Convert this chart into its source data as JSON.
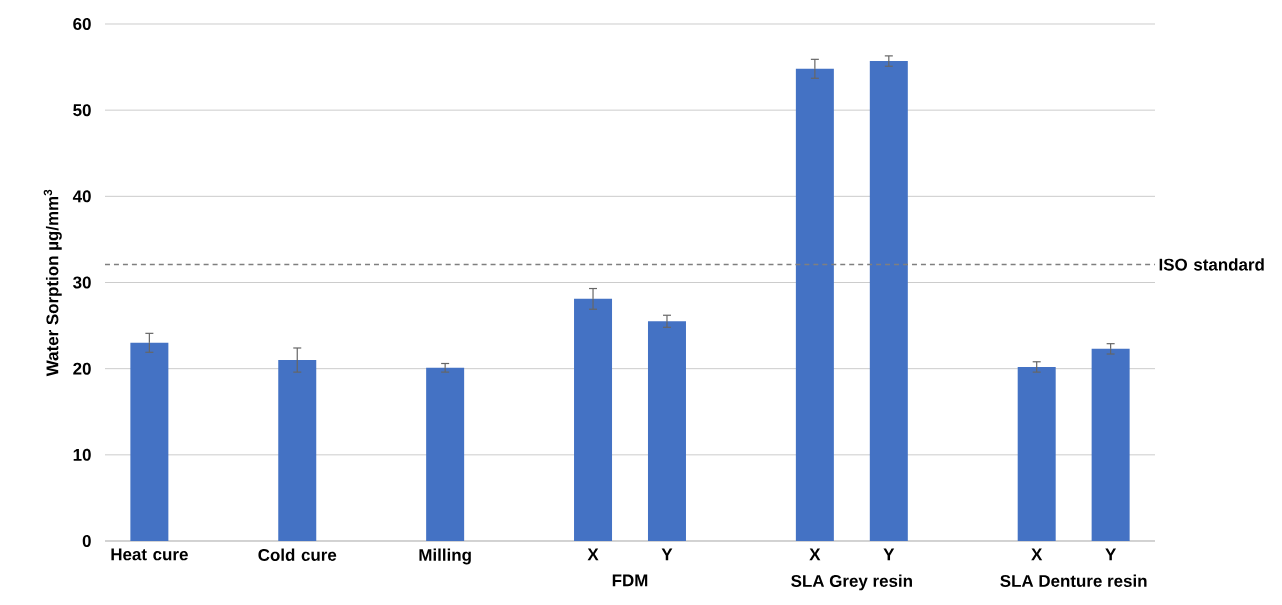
{
  "chart_data": {
    "type": "bar",
    "ylabel": "Water Sorption  µg/mm$^{3}$",
    "categories": [
      "Heat cure",
      null,
      "Cold cure",
      null,
      "Milling",
      null,
      "X",
      "Y",
      null,
      "X",
      "Y",
      null,
      "X",
      "Y"
    ],
    "values": [
      23,
      null,
      21,
      null,
      20.1,
      null,
      28.1,
      25.5,
      null,
      54.8,
      55.7,
      null,
      20.2,
      22.3
    ],
    "errors": [
      1.1,
      null,
      1.4,
      null,
      0.5,
      null,
      1.2,
      0.7,
      null,
      1.1,
      0.6,
      null,
      0.6,
      0.6
    ],
    "color": "#4472c4",
    "ylim": [
      0,
      60
    ],
    "yticks": [
      0,
      10,
      20,
      30,
      40,
      50,
      60
    ],
    "grid": "y",
    "ref_lines": [
      {
        "axis": "y",
        "value": 32.1,
        "label": "ISO standard",
        "color": "#7f7f7f",
        "line_style": "dashed"
      }
    ],
    "annotations": [
      "FDM",
      "SLA Grey resin",
      "SLA Denture resin"
    ]
  }
}
